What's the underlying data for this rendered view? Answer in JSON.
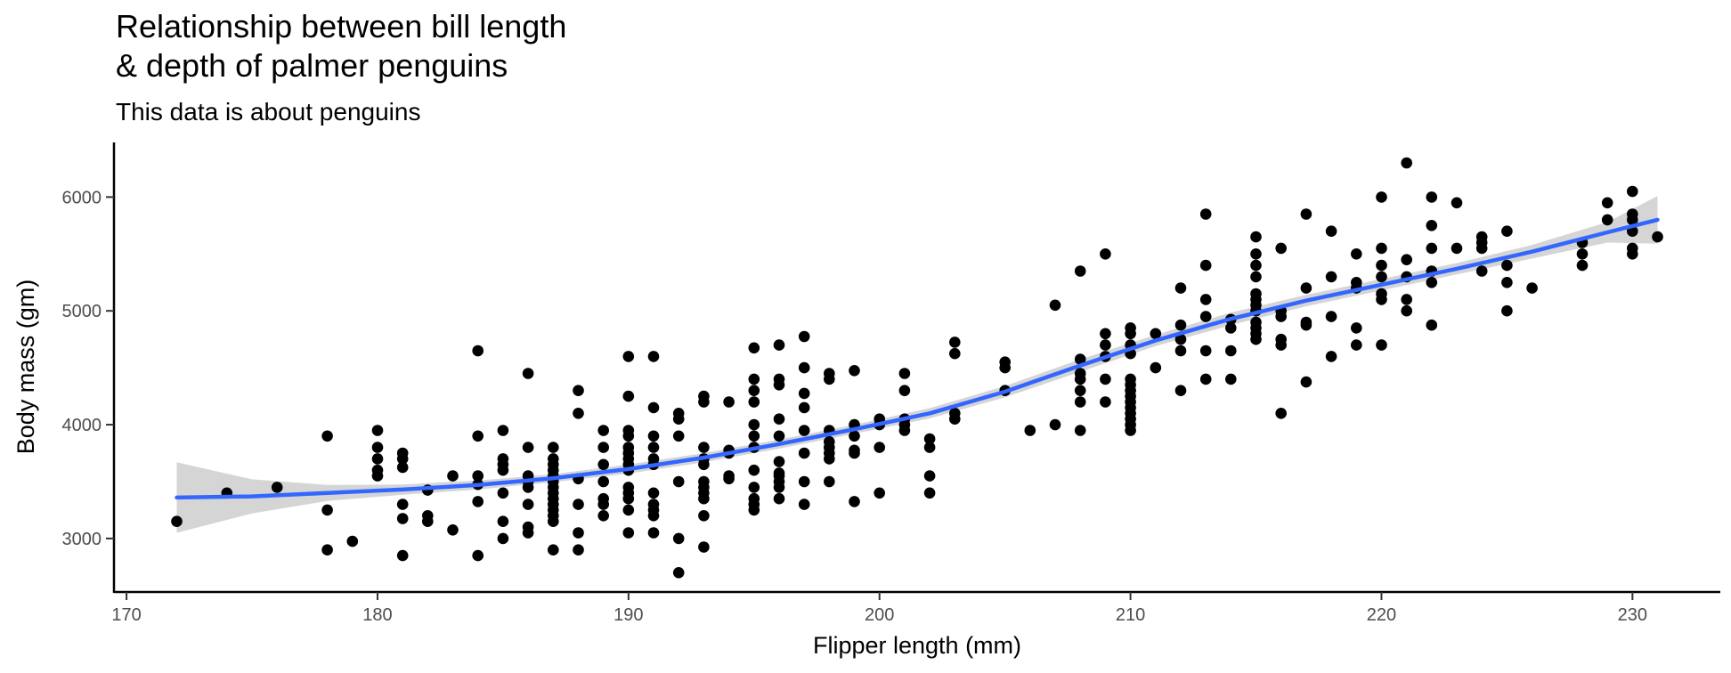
{
  "chart_data": {
    "type": "scatter",
    "title": "Relationship between bill length\n& depth of palmer penguins",
    "subtitle": "This data is about penguins",
    "xlabel": "Flipper length (mm)",
    "ylabel": "Body mass (gm)",
    "xlim": [
      169.5,
      233.5
    ],
    "ylim": [
      2530,
      6480
    ],
    "xticks": [
      170,
      180,
      190,
      200,
      210,
      220,
      230
    ],
    "yticks": [
      3000,
      4000,
      5000,
      6000
    ],
    "grid": false,
    "legend": "none",
    "colors": {
      "points": "#000000",
      "smooth_line": "#3366FF",
      "confidence_band": "#BEBEBE"
    },
    "points": [
      [
        172,
        3150
      ],
      [
        174,
        3400
      ],
      [
        176,
        3450
      ],
      [
        178,
        3900
      ],
      [
        178,
        3250
      ],
      [
        178,
        2900
      ],
      [
        179,
        2975
      ],
      [
        180,
        3950
      ],
      [
        180,
        3800
      ],
      [
        180,
        3700
      ],
      [
        180,
        3600
      ],
      [
        180,
        3550
      ],
      [
        181,
        3750
      ],
      [
        181,
        3700
      ],
      [
        181,
        3625
      ],
      [
        181,
        3300
      ],
      [
        181,
        3175
      ],
      [
        181,
        2850
      ],
      [
        182,
        3425
      ],
      [
        182,
        3200
      ],
      [
        182,
        3150
      ],
      [
        183,
        3550
      ],
      [
        183,
        3075
      ],
      [
        184,
        4650
      ],
      [
        184,
        3900
      ],
      [
        184,
        3550
      ],
      [
        184,
        3475
      ],
      [
        184,
        3325
      ],
      [
        184,
        2850
      ],
      [
        185,
        3950
      ],
      [
        185,
        3700
      ],
      [
        185,
        3650
      ],
      [
        185,
        3600
      ],
      [
        185,
        3400
      ],
      [
        185,
        3150
      ],
      [
        185,
        3000
      ],
      [
        186,
        4450
      ],
      [
        186,
        3800
      ],
      [
        186,
        3550
      ],
      [
        186,
        3500
      ],
      [
        186,
        3450
      ],
      [
        186,
        3300
      ],
      [
        186,
        3100
      ],
      [
        186,
        3050
      ],
      [
        187,
        3800
      ],
      [
        187,
        3700
      ],
      [
        187,
        3650
      ],
      [
        187,
        3600
      ],
      [
        187,
        3550
      ],
      [
        187,
        3500
      ],
      [
        187,
        3450
      ],
      [
        187,
        3400
      ],
      [
        187,
        3350
      ],
      [
        187,
        3300
      ],
      [
        187,
        3250
      ],
      [
        187,
        3200
      ],
      [
        187,
        3150
      ],
      [
        187,
        2900
      ],
      [
        188,
        4300
      ],
      [
        188,
        4100
      ],
      [
        188,
        3525
      ],
      [
        188,
        3300
      ],
      [
        188,
        3050
      ],
      [
        188,
        2900
      ],
      [
        189,
        3950
      ],
      [
        189,
        3800
      ],
      [
        189,
        3650
      ],
      [
        189,
        3500
      ],
      [
        189,
        3350
      ],
      [
        189,
        3300
      ],
      [
        189,
        3200
      ],
      [
        190,
        4600
      ],
      [
        190,
        4250
      ],
      [
        190,
        3950
      ],
      [
        190,
        3900
      ],
      [
        190,
        3800
      ],
      [
        190,
        3750
      ],
      [
        190,
        3700
      ],
      [
        190,
        3650
      ],
      [
        190,
        3600
      ],
      [
        190,
        3450
      ],
      [
        190,
        3400
      ],
      [
        190,
        3350
      ],
      [
        190,
        3250
      ],
      [
        190,
        3050
      ],
      [
        191,
        4600
      ],
      [
        191,
        4150
      ],
      [
        191,
        3900
      ],
      [
        191,
        3800
      ],
      [
        191,
        3700
      ],
      [
        191,
        3650
      ],
      [
        191,
        3400
      ],
      [
        191,
        3300
      ],
      [
        191,
        3250
      ],
      [
        191,
        3200
      ],
      [
        191,
        3050
      ],
      [
        192,
        4100
      ],
      [
        192,
        4050
      ],
      [
        192,
        3900
      ],
      [
        192,
        3500
      ],
      [
        192,
        3000
      ],
      [
        192,
        2700
      ],
      [
        193,
        4250
      ],
      [
        193,
        4200
      ],
      [
        193,
        3800
      ],
      [
        193,
        3700
      ],
      [
        193,
        3650
      ],
      [
        193,
        3500
      ],
      [
        193,
        3450
      ],
      [
        193,
        3400
      ],
      [
        193,
        3350
      ],
      [
        193,
        3200
      ],
      [
        193,
        2925
      ],
      [
        194,
        4200
      ],
      [
        194,
        3775
      ],
      [
        194,
        3750
      ],
      [
        194,
        3550
      ],
      [
        194,
        3525
      ],
      [
        195,
        4675
      ],
      [
        195,
        4400
      ],
      [
        195,
        4300
      ],
      [
        195,
        4200
      ],
      [
        195,
        4000
      ],
      [
        195,
        3900
      ],
      [
        195,
        3800
      ],
      [
        195,
        3600
      ],
      [
        195,
        3450
      ],
      [
        195,
        3350
      ],
      [
        195,
        3300
      ],
      [
        195,
        3250
      ],
      [
        196,
        4700
      ],
      [
        196,
        4400
      ],
      [
        196,
        4350
      ],
      [
        196,
        4050
      ],
      [
        196,
        3900
      ],
      [
        196,
        3675
      ],
      [
        196,
        3575
      ],
      [
        196,
        3550
      ],
      [
        196,
        3500
      ],
      [
        196,
        3450
      ],
      [
        196,
        3350
      ],
      [
        197,
        4775
      ],
      [
        197,
        4500
      ],
      [
        197,
        4275
      ],
      [
        197,
        4150
      ],
      [
        197,
        3950
      ],
      [
        197,
        3750
      ],
      [
        197,
        3500
      ],
      [
        197,
        3300
      ],
      [
        198,
        4450
      ],
      [
        198,
        4400
      ],
      [
        198,
        3950
      ],
      [
        198,
        3850
      ],
      [
        198,
        3800
      ],
      [
        198,
        3750
      ],
      [
        198,
        3700
      ],
      [
        198,
        3500
      ],
      [
        199,
        4475
      ],
      [
        199,
        4000
      ],
      [
        199,
        3900
      ],
      [
        199,
        3775
      ],
      [
        199,
        3750
      ],
      [
        199,
        3325
      ],
      [
        200,
        4050
      ],
      [
        200,
        4000
      ],
      [
        200,
        3800
      ],
      [
        200,
        3400
      ],
      [
        201,
        4450
      ],
      [
        201,
        4300
      ],
      [
        201,
        4050
      ],
      [
        201,
        4000
      ],
      [
        201,
        3950
      ],
      [
        202,
        3875
      ],
      [
        202,
        3800
      ],
      [
        202,
        3550
      ],
      [
        202,
        3400
      ],
      [
        203,
        4725
      ],
      [
        203,
        4625
      ],
      [
        203,
        4100
      ],
      [
        203,
        4050
      ],
      [
        205,
        4550
      ],
      [
        205,
        4500
      ],
      [
        205,
        4300
      ],
      [
        206,
        3950
      ],
      [
        207,
        5050
      ],
      [
        207,
        4000
      ],
      [
        208,
        5350
      ],
      [
        208,
        4575
      ],
      [
        208,
        4450
      ],
      [
        208,
        4400
      ],
      [
        208,
        4300
      ],
      [
        208,
        4200
      ],
      [
        208,
        3950
      ],
      [
        209,
        5500
      ],
      [
        209,
        4800
      ],
      [
        209,
        4700
      ],
      [
        209,
        4600
      ],
      [
        209,
        4400
      ],
      [
        209,
        4200
      ],
      [
        210,
        4850
      ],
      [
        210,
        4800
      ],
      [
        210,
        4700
      ],
      [
        210,
        4625
      ],
      [
        210,
        4400
      ],
      [
        210,
        4350
      ],
      [
        210,
        4300
      ],
      [
        210,
        4250
      ],
      [
        210,
        4200
      ],
      [
        210,
        4150
      ],
      [
        210,
        4100
      ],
      [
        210,
        4050
      ],
      [
        210,
        4000
      ],
      [
        210,
        3950
      ],
      [
        211,
        4800
      ],
      [
        211,
        4500
      ],
      [
        212,
        5200
      ],
      [
        212,
        4875
      ],
      [
        212,
        4750
      ],
      [
        212,
        4650
      ],
      [
        212,
        4300
      ],
      [
        213,
        5850
      ],
      [
        213,
        5400
      ],
      [
        213,
        5100
      ],
      [
        213,
        4950
      ],
      [
        213,
        4650
      ],
      [
        213,
        4400
      ],
      [
        214,
        4925
      ],
      [
        214,
        4850
      ],
      [
        214,
        4650
      ],
      [
        214,
        4400
      ],
      [
        215,
        5650
      ],
      [
        215,
        5500
      ],
      [
        215,
        5400
      ],
      [
        215,
        5300
      ],
      [
        215,
        5150
      ],
      [
        215,
        5100
      ],
      [
        215,
        5050
      ],
      [
        215,
        5000
      ],
      [
        215,
        4900
      ],
      [
        215,
        4850
      ],
      [
        215,
        4800
      ],
      [
        215,
        4750
      ],
      [
        216,
        5550
      ],
      [
        216,
        5000
      ],
      [
        216,
        4950
      ],
      [
        216,
        4750
      ],
      [
        216,
        4700
      ],
      [
        216,
        4100
      ],
      [
        217,
        5850
      ],
      [
        217,
        5200
      ],
      [
        217,
        4900
      ],
      [
        217,
        4875
      ],
      [
        217,
        4375
      ],
      [
        218,
        5700
      ],
      [
        218,
        5300
      ],
      [
        218,
        4950
      ],
      [
        218,
        4600
      ],
      [
        219,
        5500
      ],
      [
        219,
        5250
      ],
      [
        219,
        5200
      ],
      [
        219,
        4850
      ],
      [
        219,
        4700
      ],
      [
        220,
        6000
      ],
      [
        220,
        5550
      ],
      [
        220,
        5400
      ],
      [
        220,
        5300
      ],
      [
        220,
        5150
      ],
      [
        220,
        5100
      ],
      [
        220,
        4700
      ],
      [
        221,
        6300
      ],
      [
        221,
        5450
      ],
      [
        221,
        5300
      ],
      [
        221,
        5100
      ],
      [
        221,
        5000
      ],
      [
        222,
        6000
      ],
      [
        222,
        5750
      ],
      [
        222,
        5550
      ],
      [
        222,
        5350
      ],
      [
        222,
        5250
      ],
      [
        222,
        4875
      ],
      [
        223,
        5950
      ],
      [
        223,
        5550
      ],
      [
        224,
        5650
      ],
      [
        224,
        5600
      ],
      [
        224,
        5550
      ],
      [
        224,
        5350
      ],
      [
        225,
        5700
      ],
      [
        225,
        5400
      ],
      [
        225,
        5250
      ],
      [
        225,
        5000
      ],
      [
        226,
        5200
      ],
      [
        228,
        5600
      ],
      [
        228,
        5500
      ],
      [
        228,
        5400
      ],
      [
        229,
        5950
      ],
      [
        229,
        5800
      ],
      [
        230,
        6050
      ],
      [
        230,
        5850
      ],
      [
        230,
        5800
      ],
      [
        230,
        5700
      ],
      [
        230,
        5550
      ],
      [
        230,
        5500
      ],
      [
        231,
        5650
      ]
    ],
    "smooth": {
      "x": [
        172,
        175,
        178,
        181,
        184,
        187,
        190,
        193,
        196,
        199,
        202,
        205,
        208,
        211,
        214,
        217,
        220,
        223,
        226,
        229,
        231
      ],
      "y": [
        3360,
        3370,
        3400,
        3430,
        3470,
        3530,
        3610,
        3710,
        3830,
        3960,
        4100,
        4290,
        4520,
        4740,
        4930,
        5090,
        5230,
        5370,
        5520,
        5690,
        5800
      ],
      "ymin": [
        3050,
        3220,
        3330,
        3385,
        3430,
        3495,
        3570,
        3670,
        3790,
        3920,
        4055,
        4240,
        4465,
        4690,
        4875,
        5040,
        5180,
        5320,
        5460,
        5600,
        5590
      ],
      "ymax": [
        3670,
        3520,
        3470,
        3475,
        3510,
        3565,
        3650,
        3750,
        3870,
        4000,
        4145,
        4340,
        4575,
        4790,
        4985,
        5140,
        5280,
        5420,
        5580,
        5780,
        6010
      ]
    }
  }
}
